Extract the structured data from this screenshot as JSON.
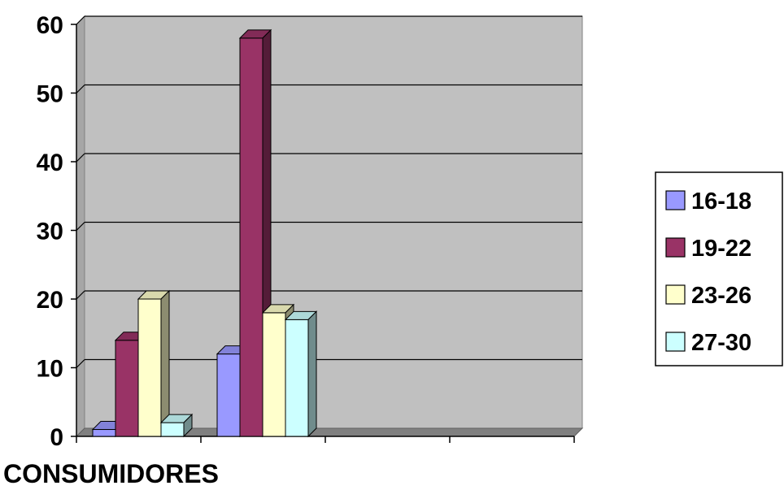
{
  "chart_data": {
    "type": "bar",
    "style": "3d-clustered-column",
    "categories": [
      "",
      "",
      "",
      ""
    ],
    "series": [
      {
        "name": "16-18",
        "values": [
          1,
          12,
          null,
          null
        ],
        "color": "#9999ff"
      },
      {
        "name": "19-22",
        "values": [
          14,
          58,
          null,
          null
        ],
        "color": "#993366"
      },
      {
        "name": "23-26",
        "values": [
          20,
          18,
          null,
          null
        ],
        "color": "#ffffcc"
      },
      {
        "name": "27-30",
        "values": [
          2,
          17,
          null,
          null
        ],
        "color": "#ccffff"
      }
    ],
    "yticks": [
      "0",
      "10",
      "20",
      "30",
      "40",
      "50",
      "60"
    ],
    "ylim": [
      0,
      60
    ],
    "xlabel": "CONSUMIDORES",
    "ylabel": "",
    "title": "",
    "grid": true,
    "legend_position": "right",
    "wall_color": "#c0c0c0"
  }
}
